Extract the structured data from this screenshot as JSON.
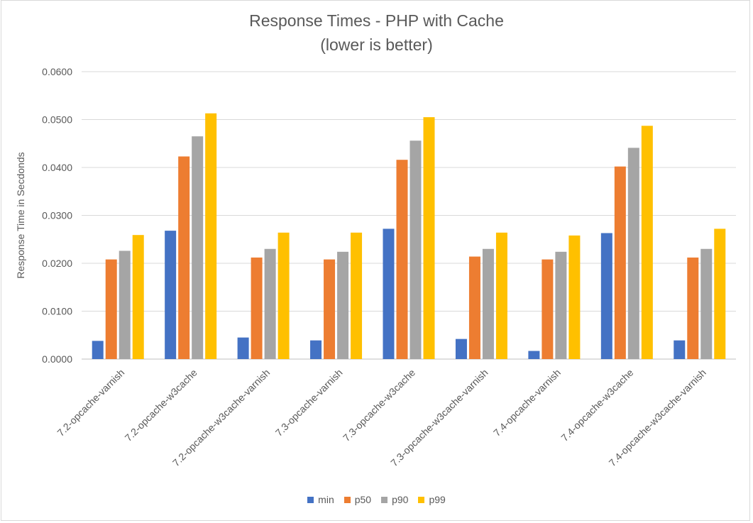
{
  "chart_data": {
    "type": "bar",
    "title": "Response Times - PHP with Cache",
    "subtitle": "(lower is better)",
    "xlabel": "",
    "ylabel": "Response Time in Secdonds",
    "ylim": [
      0,
      0.06
    ],
    "yticks": [
      "0.0000",
      "0.0100",
      "0.0200",
      "0.0300",
      "0.0400",
      "0.0500",
      "0.0600"
    ],
    "grid": true,
    "legend_position": "bottom",
    "categories": [
      "7.2-opcache-varnish",
      "7.2-opcache-w3cache",
      "7.2-opcache-w3cache-varnish",
      "7.3-opcache-varnish",
      "7.3-opcache-w3cache",
      "7.3-opcache-w3cache-varnish",
      "7.4-opcache-varnish",
      "7.4-opcache-w3cache",
      "7.4-opcache-w3cache-varnish"
    ],
    "series": [
      {
        "name": "min",
        "color": "#4472c4",
        "values": [
          0.0038,
          0.0268,
          0.0045,
          0.0039,
          0.0272,
          0.0042,
          0.0017,
          0.0263,
          0.0039
        ]
      },
      {
        "name": "p50",
        "color": "#ed7d31",
        "values": [
          0.0208,
          0.0423,
          0.0212,
          0.0208,
          0.0416,
          0.0214,
          0.0208,
          0.0402,
          0.0212
        ]
      },
      {
        "name": "p90",
        "color": "#a5a5a5",
        "values": [
          0.0226,
          0.0465,
          0.023,
          0.0224,
          0.0456,
          0.023,
          0.0224,
          0.0441,
          0.023
        ]
      },
      {
        "name": "p99",
        "color": "#ffc000",
        "values": [
          0.0259,
          0.0513,
          0.0264,
          0.0264,
          0.0505,
          0.0264,
          0.0258,
          0.0487,
          0.0272
        ]
      }
    ]
  }
}
